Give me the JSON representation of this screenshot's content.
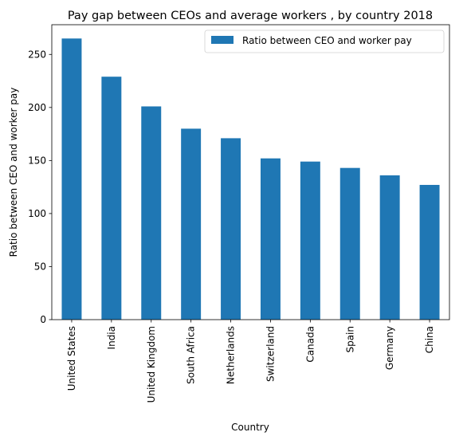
{
  "chart_data": {
    "type": "bar",
    "title": "Pay gap between CEOs and average workers , by country 2018",
    "xlabel": "Country",
    "ylabel": "Ratio between CEO and worker pay",
    "categories": [
      "United States",
      "India",
      "United Kingdom",
      "South Africa",
      "Netherlands",
      "Switzerland",
      "Canada",
      "Spain",
      "Germany",
      "China"
    ],
    "series": [
      {
        "name": "Ratio between CEO and worker pay",
        "values": [
          265,
          229,
          201,
          180,
          171,
          152,
          149,
          143,
          136,
          127
        ],
        "color": "#1f77b4"
      }
    ],
    "ylim": [
      0,
      278
    ],
    "yticks": [
      0,
      50,
      100,
      150,
      200,
      250
    ],
    "grid": false,
    "legend_position": "top-right"
  }
}
